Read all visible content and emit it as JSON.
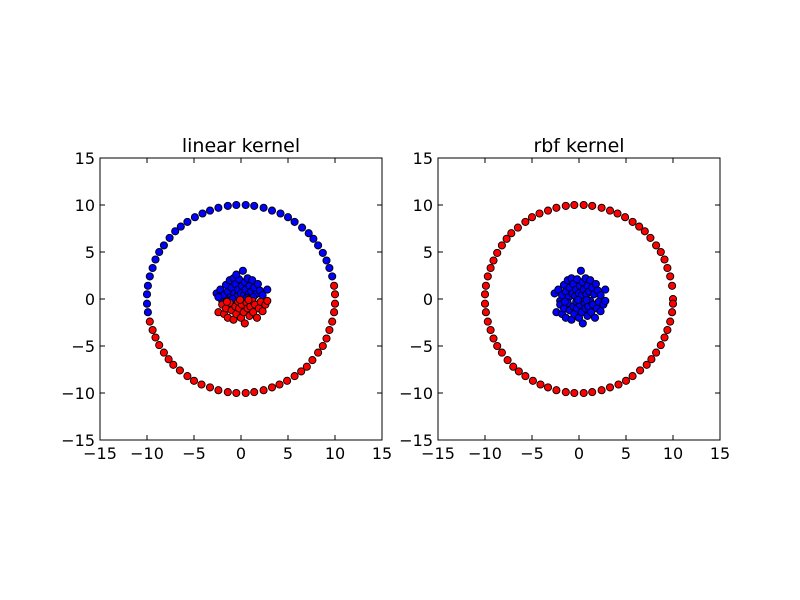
{
  "chart_data": [
    {
      "type": "scatter",
      "title": "linear kernel",
      "xlabel": "",
      "ylabel": "",
      "xlim": [
        -15,
        15
      ],
      "ylim": [
        -15,
        15
      ],
      "xticks": [
        -15,
        -10,
        -5,
        0,
        5,
        10,
        15
      ],
      "yticks": [
        -15,
        -10,
        -5,
        0,
        5,
        10,
        15
      ],
      "grid": false,
      "series": [
        {
          "color": "#0000ff",
          "points": [
            [
              -9.9,
              -1.4
            ],
            [
              -10.0,
              -0.5
            ],
            [
              -10.0,
              0.5
            ],
            [
              -9.9,
              1.4
            ],
            [
              -9.7,
              2.4
            ],
            [
              -9.4,
              3.3
            ],
            [
              -9.1,
              4.2
            ],
            [
              -8.7,
              5.0
            ],
            [
              -8.2,
              5.7
            ],
            [
              -7.6,
              6.5
            ],
            [
              -7.0,
              7.2
            ],
            [
              -6.4,
              7.7
            ],
            [
              -5.7,
              8.2
            ],
            [
              -4.9,
              8.7
            ],
            [
              -4.1,
              9.1
            ],
            [
              -3.3,
              9.4
            ],
            [
              -2.4,
              9.7
            ],
            [
              -1.4,
              9.9
            ],
            [
              -0.5,
              10.0
            ],
            [
              0.5,
              10.0
            ],
            [
              1.4,
              9.9
            ],
            [
              2.4,
              9.7
            ],
            [
              3.3,
              9.4
            ],
            [
              4.2,
              9.1
            ],
            [
              5.0,
              8.7
            ],
            [
              5.7,
              8.2
            ],
            [
              6.5,
              7.6
            ],
            [
              7.2,
              7.0
            ],
            [
              7.7,
              6.4
            ],
            [
              8.2,
              5.7
            ],
            [
              8.7,
              4.9
            ],
            [
              9.1,
              4.1
            ],
            [
              9.4,
              3.3
            ],
            [
              9.7,
              2.4
            ],
            [
              -2.6,
              0.6
            ],
            [
              -2.2,
              1.0
            ],
            [
              -2.0,
              -0.2
            ],
            [
              -1.8,
              0.4
            ],
            [
              -1.6,
              1.5
            ],
            [
              -1.4,
              0.8
            ],
            [
              -1.2,
              2.0
            ],
            [
              -1.1,
              0.2
            ],
            [
              -1.0,
              1.2
            ],
            [
              -0.8,
              2.2
            ],
            [
              -0.7,
              0.6
            ],
            [
              -0.6,
              1.6
            ],
            [
              -0.4,
              0.3
            ],
            [
              -0.3,
              1.0
            ],
            [
              -0.2,
              2.1
            ],
            [
              0.0,
              0.6
            ],
            [
              0.1,
              1.4
            ],
            [
              0.2,
              3.0
            ],
            [
              0.3,
              0.4
            ],
            [
              0.4,
              1.8
            ],
            [
              0.5,
              1.0
            ],
            [
              0.7,
              2.2
            ],
            [
              0.8,
              0.5
            ],
            [
              0.9,
              1.4
            ],
            [
              1.1,
              0.8
            ],
            [
              1.2,
              2.0
            ],
            [
              1.4,
              1.2
            ],
            [
              1.6,
              0.5
            ],
            [
              1.8,
              1.6
            ],
            [
              2.0,
              0.9
            ],
            [
              2.3,
              0.4
            ],
            [
              2.8,
              1.0
            ],
            [
              -1.5,
              -0.2
            ],
            [
              -0.9,
              0.0
            ],
            [
              0.6,
              0.1
            ],
            [
              1.3,
              0.2
            ],
            [
              -2.4,
              0.2
            ],
            [
              -0.5,
              2.6
            ]
          ]
        },
        {
          "color": "#ff0000",
          "points": [
            [
              9.9,
              1.4
            ],
            [
              10.0,
              0.5
            ],
            [
              10.0,
              -0.5
            ],
            [
              9.9,
              -1.4
            ],
            [
              9.7,
              -2.4
            ],
            [
              9.4,
              -3.3
            ],
            [
              9.1,
              -4.2
            ],
            [
              8.7,
              -5.0
            ],
            [
              8.2,
              -5.7
            ],
            [
              7.6,
              -6.5
            ],
            [
              7.0,
              -7.2
            ],
            [
              6.4,
              -7.7
            ],
            [
              5.7,
              -8.2
            ],
            [
              4.9,
              -8.7
            ],
            [
              4.1,
              -9.1
            ],
            [
              3.3,
              -9.4
            ],
            [
              2.4,
              -9.7
            ],
            [
              1.4,
              -9.9
            ],
            [
              0.5,
              -10.0
            ],
            [
              -0.5,
              -10.0
            ],
            [
              -1.4,
              -9.9
            ],
            [
              -2.4,
              -9.7
            ],
            [
              -3.3,
              -9.4
            ],
            [
              -4.2,
              -9.1
            ],
            [
              -5.0,
              -8.7
            ],
            [
              -5.7,
              -8.2
            ],
            [
              -6.5,
              -7.6
            ],
            [
              -7.2,
              -7.0
            ],
            [
              -7.7,
              -6.4
            ],
            [
              -8.2,
              -5.7
            ],
            [
              -8.7,
              -4.9
            ],
            [
              -9.1,
              -4.1
            ],
            [
              -9.4,
              -3.3
            ],
            [
              -9.7,
              -2.4
            ],
            [
              -2.4,
              -1.4
            ],
            [
              -2.0,
              -0.6
            ],
            [
              -1.8,
              -1.6
            ],
            [
              -1.6,
              -1.0
            ],
            [
              -1.4,
              -2.0
            ],
            [
              -1.2,
              -0.4
            ],
            [
              -1.0,
              -1.2
            ],
            [
              -0.8,
              -2.2
            ],
            [
              -0.6,
              -0.8
            ],
            [
              -0.5,
              -1.6
            ],
            [
              -0.3,
              -0.3
            ],
            [
              -0.2,
              -1.0
            ],
            [
              0.0,
              -2.0
            ],
            [
              0.1,
              -0.6
            ],
            [
              0.3,
              -1.4
            ],
            [
              0.4,
              -2.6
            ],
            [
              0.6,
              -0.4
            ],
            [
              0.7,
              -1.0
            ],
            [
              0.9,
              -1.8
            ],
            [
              1.0,
              -0.8
            ],
            [
              1.2,
              -0.2
            ],
            [
              1.3,
              -1.4
            ],
            [
              1.5,
              -0.6
            ],
            [
              1.7,
              -2.0
            ],
            [
              1.9,
              -1.0
            ],
            [
              2.1,
              -0.3
            ],
            [
              2.3,
              -1.3
            ],
            [
              2.6,
              -0.6
            ],
            [
              2.8,
              -0.2
            ],
            [
              -0.1,
              -0.1
            ],
            [
              0.8,
              -0.1
            ],
            [
              -1.5,
              -0.3
            ]
          ]
        }
      ]
    },
    {
      "type": "scatter",
      "title": "rbf kernel",
      "xlabel": "",
      "ylabel": "",
      "xlim": [
        -15,
        15
      ],
      "ylim": [
        -15,
        15
      ],
      "xticks": [
        -15,
        -10,
        -5,
        0,
        5,
        10,
        15
      ],
      "yticks": [
        -15,
        -10,
        -5,
        0,
        5,
        10,
        15
      ],
      "grid": false,
      "series": [
        {
          "color": "#ff0000",
          "points": [
            [
              10.0,
              0.0
            ],
            [
              9.9,
              1.4
            ],
            [
              9.7,
              2.4
            ],
            [
              9.4,
              3.3
            ],
            [
              9.1,
              4.2
            ],
            [
              8.7,
              5.0
            ],
            [
              8.2,
              5.7
            ],
            [
              7.6,
              6.5
            ],
            [
              7.0,
              7.2
            ],
            [
              6.4,
              7.7
            ],
            [
              5.7,
              8.2
            ],
            [
              4.9,
              8.7
            ],
            [
              4.1,
              9.1
            ],
            [
              3.3,
              9.4
            ],
            [
              2.4,
              9.7
            ],
            [
              1.4,
              9.9
            ],
            [
              0.5,
              10.0
            ],
            [
              -0.5,
              10.0
            ],
            [
              -1.4,
              9.9
            ],
            [
              -2.4,
              9.7
            ],
            [
              -3.3,
              9.4
            ],
            [
              -4.2,
              9.1
            ],
            [
              -5.0,
              8.7
            ],
            [
              -5.7,
              8.2
            ],
            [
              -6.5,
              7.6
            ],
            [
              -7.2,
              7.0
            ],
            [
              -7.7,
              6.4
            ],
            [
              -8.2,
              5.7
            ],
            [
              -8.7,
              4.9
            ],
            [
              -9.1,
              4.1
            ],
            [
              -9.4,
              3.3
            ],
            [
              -9.7,
              2.4
            ],
            [
              -9.9,
              1.4
            ],
            [
              -10.0,
              0.5
            ],
            [
              -10.0,
              -0.5
            ],
            [
              -9.9,
              -1.4
            ],
            [
              -9.7,
              -2.4
            ],
            [
              -9.4,
              -3.3
            ],
            [
              -9.1,
              -4.2
            ],
            [
              -8.7,
              -5.0
            ],
            [
              -8.2,
              -5.7
            ],
            [
              -7.6,
              -6.5
            ],
            [
              -7.0,
              -7.2
            ],
            [
              -6.4,
              -7.7
            ],
            [
              -5.7,
              -8.2
            ],
            [
              -4.9,
              -8.7
            ],
            [
              -4.1,
              -9.1
            ],
            [
              -3.3,
              -9.4
            ],
            [
              -2.4,
              -9.7
            ],
            [
              -1.4,
              -9.9
            ],
            [
              -0.5,
              -10.0
            ],
            [
              0.5,
              -10.0
            ],
            [
              1.4,
              -9.9
            ],
            [
              2.4,
              -9.7
            ],
            [
              3.3,
              -9.4
            ],
            [
              4.2,
              -9.1
            ],
            [
              5.0,
              -8.7
            ],
            [
              5.7,
              -8.2
            ],
            [
              6.5,
              -7.6
            ],
            [
              7.2,
              -7.0
            ],
            [
              7.7,
              -6.4
            ],
            [
              8.2,
              -5.7
            ],
            [
              8.7,
              -4.9
            ],
            [
              9.1,
              -4.1
            ],
            [
              9.4,
              -3.3
            ],
            [
              9.7,
              -2.4
            ],
            [
              9.9,
              -1.4
            ],
            [
              10.0,
              -0.5
            ]
          ]
        },
        {
          "color": "#0000ff",
          "points": [
            [
              -2.6,
              0.6
            ],
            [
              -2.2,
              1.0
            ],
            [
              -2.0,
              -0.2
            ],
            [
              -1.8,
              0.4
            ],
            [
              -1.6,
              1.5
            ],
            [
              -1.4,
              0.8
            ],
            [
              -1.2,
              2.0
            ],
            [
              -1.1,
              0.2
            ],
            [
              -1.0,
              1.2
            ],
            [
              -0.8,
              2.2
            ],
            [
              -0.7,
              0.6
            ],
            [
              -0.6,
              1.6
            ],
            [
              -0.4,
              0.3
            ],
            [
              -0.3,
              1.0
            ],
            [
              -0.2,
              2.1
            ],
            [
              0.0,
              0.6
            ],
            [
              0.1,
              1.4
            ],
            [
              0.2,
              3.0
            ],
            [
              0.3,
              0.4
            ],
            [
              0.4,
              1.8
            ],
            [
              0.5,
              1.0
            ],
            [
              0.7,
              2.2
            ],
            [
              0.8,
              0.5
            ],
            [
              0.9,
              1.4
            ],
            [
              1.1,
              0.8
            ],
            [
              1.2,
              2.0
            ],
            [
              1.4,
              1.2
            ],
            [
              1.6,
              0.5
            ],
            [
              1.8,
              1.6
            ],
            [
              2.0,
              0.9
            ],
            [
              2.3,
              0.4
            ],
            [
              2.8,
              1.0
            ],
            [
              -2.4,
              -1.4
            ],
            [
              -2.0,
              -0.6
            ],
            [
              -1.8,
              -1.6
            ],
            [
              -1.6,
              -1.0
            ],
            [
              -1.4,
              -2.0
            ],
            [
              -1.2,
              -0.4
            ],
            [
              -1.0,
              -1.2
            ],
            [
              -0.8,
              -2.2
            ],
            [
              -0.6,
              -0.8
            ],
            [
              -0.5,
              -1.6
            ],
            [
              -0.3,
              -0.3
            ],
            [
              -0.2,
              -1.0
            ],
            [
              0.0,
              -2.0
            ],
            [
              0.1,
              -0.6
            ],
            [
              0.3,
              -1.4
            ],
            [
              0.4,
              -2.6
            ],
            [
              0.6,
              -0.4
            ],
            [
              0.7,
              -1.0
            ],
            [
              0.9,
              -1.8
            ],
            [
              1.0,
              -0.8
            ],
            [
              1.2,
              -0.2
            ],
            [
              1.3,
              -1.4
            ],
            [
              1.5,
              -0.6
            ],
            [
              1.7,
              -2.0
            ],
            [
              1.9,
              -1.0
            ],
            [
              2.1,
              -0.3
            ],
            [
              2.3,
              -1.3
            ],
            [
              2.6,
              -0.6
            ],
            [
              2.8,
              -0.2
            ],
            [
              -0.1,
              -0.1
            ],
            [
              0.8,
              -0.1
            ],
            [
              -1.5,
              -0.3
            ]
          ]
        }
      ]
    }
  ]
}
